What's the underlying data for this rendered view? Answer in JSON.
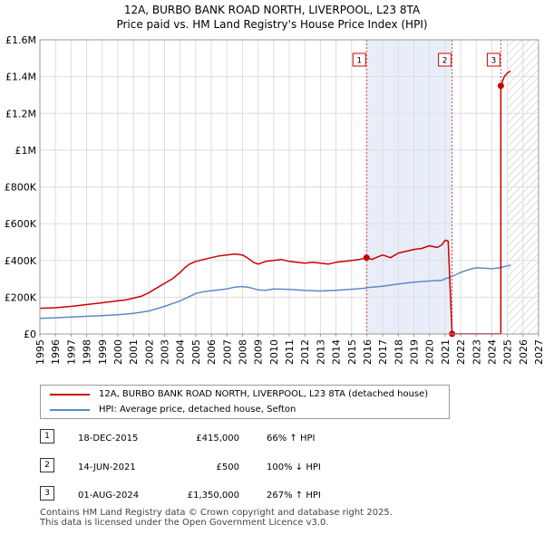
{
  "header": {
    "title_line1": "12A, BURBO BANK ROAD NORTH, LIVERPOOL, L23 8TA",
    "title_line2": "Price paid vs. HM Land Registry's House Price Index (HPI)"
  },
  "colors": {
    "property": "#cc0000",
    "hpi": "#5b8ac6",
    "band": "#e8eef9",
    "grid": "#dddddd",
    "marker_line": "#dd4444"
  },
  "chart_data": {
    "type": "line",
    "title": "Price paid vs. HM Land Registry's House Price Index (HPI)",
    "xlim": [
      1995,
      2027
    ],
    "ylim": [
      0,
      1600000
    ],
    "x_ticks": [
      "1995",
      "1996",
      "1997",
      "1998",
      "1999",
      "2000",
      "2001",
      "2002",
      "2003",
      "2004",
      "2005",
      "2006",
      "2007",
      "2008",
      "2009",
      "2010",
      "2011",
      "2012",
      "2013",
      "2014",
      "2015",
      "2016",
      "2017",
      "2018",
      "2019",
      "2020",
      "2021",
      "2022",
      "2023",
      "2024",
      "2025",
      "2026",
      "2027"
    ],
    "y_ticks": [
      {
        "value": 0,
        "label": "£0"
      },
      {
        "value": 200000,
        "label": "£200K"
      },
      {
        "value": 400000,
        "label": "£400K"
      },
      {
        "value": 600000,
        "label": "£600K"
      },
      {
        "value": 800000,
        "label": "£800K"
      },
      {
        "value": 1000000,
        "label": "£1M"
      },
      {
        "value": 1200000,
        "label": "£1.2M"
      },
      {
        "value": 1400000,
        "label": "£1.4M"
      },
      {
        "value": 1600000,
        "label": "£1.6M"
      }
    ],
    "grid": true,
    "shaded_band": [
      2015.96,
      2021.45
    ],
    "forecast_hatch_from": 2025.0,
    "series": [
      {
        "name": "12A, BURBO BANK ROAD NORTH, LIVERPOOL, L23 8TA (detached house)",
        "x": [
          1995,
          1996,
          1997,
          1998,
          1999,
          2000,
          2000.5,
          2001,
          2001.5,
          2002,
          2002.5,
          2003,
          2003.5,
          2004,
          2004.3,
          2004.6,
          2005,
          2005.5,
          2006,
          2006.5,
          2007,
          2007.5,
          2008,
          2008.3,
          2008.7,
          2009,
          2009.5,
          2010,
          2010.5,
          2011,
          2011.5,
          2012,
          2012.5,
          2013,
          2013.5,
          2014,
          2014.5,
          2015,
          2015.5,
          2015.96,
          2016.3,
          2016.7,
          2017,
          2017.5,
          2018,
          2018.5,
          2019,
          2019.5,
          2020,
          2020.5,
          2020.8,
          2021,
          2021.2,
          2021.45,
          2021.45,
          2024.58,
          2024.58,
          2024.8,
          2025,
          2025.2
        ],
        "values": [
          140000,
          143000,
          150000,
          160000,
          170000,
          180000,
          185000,
          195000,
          205000,
          225000,
          250000,
          275000,
          300000,
          335000,
          360000,
          380000,
          395000,
          405000,
          415000,
          425000,
          430000,
          435000,
          430000,
          415000,
          390000,
          380000,
          395000,
          400000,
          405000,
          395000,
          390000,
          385000,
          390000,
          385000,
          380000,
          390000,
          395000,
          400000,
          405000,
          415000,
          405000,
          420000,
          430000,
          415000,
          440000,
          450000,
          460000,
          465000,
          480000,
          470000,
          485000,
          510000,
          505000,
          500,
          500,
          500,
          1350000,
          1400000,
          1420000,
          1430000
        ]
      },
      {
        "name": "HPI: Average price, detached house, Sefton",
        "x": [
          1995,
          1996,
          1997,
          1998,
          1999,
          2000,
          2001,
          2002,
          2003,
          2004,
          2004.5,
          2005,
          2005.5,
          2006,
          2007,
          2007.5,
          2008,
          2008.5,
          2009,
          2009.5,
          2010,
          2011,
          2012,
          2013,
          2014,
          2015,
          2015.96,
          2016,
          2017,
          2018,
          2019,
          2020,
          2020.8,
          2021,
          2021.5,
          2022,
          2022.5,
          2023,
          2023.5,
          2024,
          2024.5,
          2025,
          2025.2
        ],
        "values": [
          85000,
          88000,
          92000,
          96000,
          100000,
          105000,
          112000,
          125000,
          150000,
          180000,
          200000,
          220000,
          230000,
          235000,
          245000,
          255000,
          258000,
          252000,
          240000,
          238000,
          245000,
          242000,
          237000,
          234000,
          238000,
          243000,
          250000,
          252000,
          260000,
          272000,
          282000,
          288000,
          292000,
          300000,
          315000,
          335000,
          350000,
          360000,
          358000,
          355000,
          360000,
          370000,
          375000
        ]
      }
    ],
    "sales": [
      {
        "num": "1",
        "x": 2015.96,
        "value": 415000
      },
      {
        "num": "2",
        "x": 2021.45,
        "value": 500
      },
      {
        "num": "3",
        "x": 2024.58,
        "value": 1350000
      }
    ]
  },
  "legend": {
    "property_label": "12A, BURBO BANK ROAD NORTH, LIVERPOOL, L23 8TA (detached house)",
    "hpi_label": "HPI: Average price, detached house, Sefton"
  },
  "sales_table": [
    {
      "num": "1",
      "date": "18-DEC-2015",
      "price": "£415,000",
      "hpi": "66% ↑ HPI"
    },
    {
      "num": "2",
      "date": "14-JUN-2021",
      "price": "£500",
      "hpi": "100% ↓ HPI"
    },
    {
      "num": "3",
      "date": "01-AUG-2024",
      "price": "£1,350,000",
      "hpi": "267% ↑ HPI"
    }
  ],
  "footer": {
    "line1": "Contains HM Land Registry data © Crown copyright and database right 2025.",
    "line2": "This data is licensed under the Open Government Licence v3.0."
  }
}
